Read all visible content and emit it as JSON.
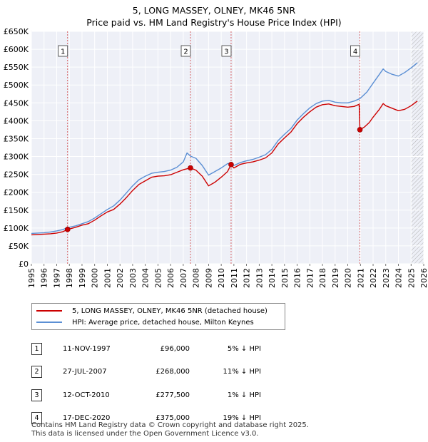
{
  "chart_data": {
    "type": "line",
    "title": "5, LONG MASSEY, OLNEY, MK46 5NR",
    "subtitle": "Price paid vs. HM Land Registry's House Price Index (HPI)",
    "xlim": [
      1995,
      2026
    ],
    "ylim": [
      0,
      650000
    ],
    "x_ticks": [
      "1995",
      "1996",
      "1997",
      "1998",
      "1999",
      "2000",
      "2001",
      "2002",
      "2003",
      "2004",
      "2005",
      "2006",
      "2007",
      "2008",
      "2009",
      "2010",
      "2011",
      "2012",
      "2013",
      "2014",
      "2015",
      "2016",
      "2017",
      "2018",
      "2019",
      "2020",
      "2021",
      "2022",
      "2023",
      "2024",
      "2025",
      "2026"
    ],
    "y_ticks": [
      {
        "value": 0,
        "label": "£0"
      },
      {
        "value": 50000,
        "label": "£50K"
      },
      {
        "value": 100000,
        "label": "£100K"
      },
      {
        "value": 150000,
        "label": "£150K"
      },
      {
        "value": 200000,
        "label": "£200K"
      },
      {
        "value": 250000,
        "label": "£250K"
      },
      {
        "value": 300000,
        "label": "£300K"
      },
      {
        "value": 350000,
        "label": "£350K"
      },
      {
        "value": 400000,
        "label": "£400K"
      },
      {
        "value": 450000,
        "label": "£450K"
      },
      {
        "value": 500000,
        "label": "£500K"
      },
      {
        "value": 550000,
        "label": "£550K"
      },
      {
        "value": 600000,
        "label": "£600K"
      },
      {
        "value": 650000,
        "label": "£650K"
      }
    ],
    "grid": true,
    "forecast_start": 2025.0,
    "series": [
      {
        "name": "5, LONG MASSEY, OLNEY, MK46 5NR (detached house)",
        "color": "#cc0000",
        "points": [
          [
            1995.0,
            81000
          ],
          [
            1995.5,
            82000
          ],
          [
            1996.0,
            83000
          ],
          [
            1996.5,
            84000
          ],
          [
            1997.0,
            86000
          ],
          [
            1997.5,
            90000
          ],
          [
            1997.86,
            96000
          ],
          [
            1998.5,
            102000
          ],
          [
            1999.0,
            108000
          ],
          [
            1999.5,
            112000
          ],
          [
            2000.0,
            122000
          ],
          [
            2000.5,
            134000
          ],
          [
            2001.0,
            145000
          ],
          [
            2001.5,
            152000
          ],
          [
            2002.0,
            167000
          ],
          [
            2002.5,
            185000
          ],
          [
            2003.0,
            205000
          ],
          [
            2003.5,
            222000
          ],
          [
            2004.0,
            232000
          ],
          [
            2004.5,
            242000
          ],
          [
            2005.0,
            245000
          ],
          [
            2005.5,
            246000
          ],
          [
            2006.0,
            249000
          ],
          [
            2006.5,
            256000
          ],
          [
            2007.0,
            263000
          ],
          [
            2007.57,
            268000
          ],
          [
            2008.0,
            262000
          ],
          [
            2008.5,
            245000
          ],
          [
            2009.0,
            218000
          ],
          [
            2009.5,
            228000
          ],
          [
            2010.0,
            242000
          ],
          [
            2010.5,
            258000
          ],
          [
            2010.78,
            277500
          ],
          [
            2011.0,
            268000
          ],
          [
            2011.5,
            278000
          ],
          [
            2012.0,
            282000
          ],
          [
            2012.5,
            285000
          ],
          [
            2013.0,
            290000
          ],
          [
            2013.5,
            296000
          ],
          [
            2014.0,
            310000
          ],
          [
            2014.5,
            335000
          ],
          [
            2015.0,
            352000
          ],
          [
            2015.5,
            368000
          ],
          [
            2016.0,
            392000
          ],
          [
            2016.5,
            410000
          ],
          [
            2017.0,
            425000
          ],
          [
            2017.5,
            438000
          ],
          [
            2018.0,
            445000
          ],
          [
            2018.5,
            447000
          ],
          [
            2019.0,
            442000
          ],
          [
            2019.5,
            440000
          ],
          [
            2020.0,
            438000
          ],
          [
            2020.5,
            440000
          ],
          [
            2020.9,
            446000
          ],
          [
            2020.96,
            375000
          ],
          [
            2021.3,
            382000
          ],
          [
            2021.7,
            395000
          ],
          [
            2022.0,
            410000
          ],
          [
            2022.5,
            432000
          ],
          [
            2022.8,
            448000
          ],
          [
            2023.0,
            442000
          ],
          [
            2023.5,
            435000
          ],
          [
            2024.0,
            428000
          ],
          [
            2024.5,
            432000
          ],
          [
            2025.0,
            442000
          ],
          [
            2025.5,
            455000
          ]
        ]
      },
      {
        "name": "HPI: Average price, detached house, Milton Keynes",
        "color": "#5b8fd4",
        "points": [
          [
            1995.0,
            85000
          ],
          [
            1995.5,
            86000
          ],
          [
            1996.0,
            87000
          ],
          [
            1996.5,
            89000
          ],
          [
            1997.0,
            92000
          ],
          [
            1997.5,
            96000
          ],
          [
            1997.86,
            101000
          ],
          [
            1998.5,
            106000
          ],
          [
            1999.0,
            112000
          ],
          [
            1999.5,
            118000
          ],
          [
            2000.0,
            128000
          ],
          [
            2000.5,
            140000
          ],
          [
            2001.0,
            152000
          ],
          [
            2001.5,
            162000
          ],
          [
            2002.0,
            178000
          ],
          [
            2002.5,
            198000
          ],
          [
            2003.0,
            218000
          ],
          [
            2003.5,
            235000
          ],
          [
            2004.0,
            245000
          ],
          [
            2004.5,
            253000
          ],
          [
            2005.0,
            256000
          ],
          [
            2005.5,
            258000
          ],
          [
            2006.0,
            262000
          ],
          [
            2006.5,
            270000
          ],
          [
            2007.0,
            285000
          ],
          [
            2007.3,
            310000
          ],
          [
            2007.57,
            301000
          ],
          [
            2008.0,
            295000
          ],
          [
            2008.5,
            275000
          ],
          [
            2009.0,
            248000
          ],
          [
            2009.5,
            258000
          ],
          [
            2010.0,
            268000
          ],
          [
            2010.5,
            280000
          ],
          [
            2010.78,
            282000
          ],
          [
            2011.0,
            275000
          ],
          [
            2011.5,
            283000
          ],
          [
            2012.0,
            288000
          ],
          [
            2012.5,
            292000
          ],
          [
            2013.0,
            298000
          ],
          [
            2013.5,
            305000
          ],
          [
            2014.0,
            320000
          ],
          [
            2014.5,
            345000
          ],
          [
            2015.0,
            362000
          ],
          [
            2015.5,
            378000
          ],
          [
            2016.0,
            402000
          ],
          [
            2016.5,
            420000
          ],
          [
            2017.0,
            436000
          ],
          [
            2017.5,
            448000
          ],
          [
            2018.0,
            455000
          ],
          [
            2018.5,
            457000
          ],
          [
            2019.0,
            452000
          ],
          [
            2019.5,
            450000
          ],
          [
            2020.0,
            450000
          ],
          [
            2020.5,
            455000
          ],
          [
            2020.96,
            462000
          ],
          [
            2021.5,
            480000
          ],
          [
            2022.0,
            505000
          ],
          [
            2022.5,
            530000
          ],
          [
            2022.8,
            545000
          ],
          [
            2023.0,
            538000
          ],
          [
            2023.5,
            530000
          ],
          [
            2024.0,
            525000
          ],
          [
            2024.5,
            535000
          ],
          [
            2025.0,
            548000
          ],
          [
            2025.5,
            562000
          ]
        ]
      }
    ],
    "sales": [
      {
        "number": "1",
        "x": 1997.86,
        "price": 96000
      },
      {
        "number": "2",
        "x": 2007.57,
        "price": 268000
      },
      {
        "number": "3",
        "x": 2010.78,
        "price": 277500
      },
      {
        "number": "4",
        "x": 2020.96,
        "price": 375000
      }
    ]
  },
  "legend": {
    "property_label": "5, LONG MASSEY, OLNEY, MK46 5NR (detached house)",
    "hpi_label": "HPI: Average price, detached house, Milton Keynes"
  },
  "table": {
    "rows": [
      {
        "number": "1",
        "date": "11-NOV-1997",
        "price": "£96,000",
        "hpi": "5% ↓ HPI"
      },
      {
        "number": "2",
        "date": "27-JUL-2007",
        "price": "£268,000",
        "hpi": "11% ↓ HPI"
      },
      {
        "number": "3",
        "date": "12-OCT-2010",
        "price": "£277,500",
        "hpi": "1% ↓ HPI"
      },
      {
        "number": "4",
        "date": "17-DEC-2020",
        "price": "£375,000",
        "hpi": "19% ↓ HPI"
      }
    ]
  },
  "footer": {
    "line1": "Contains HM Land Registry data © Crown copyright and database right 2025.",
    "line2": "This data is licensed under the Open Government Licence v3.0."
  }
}
